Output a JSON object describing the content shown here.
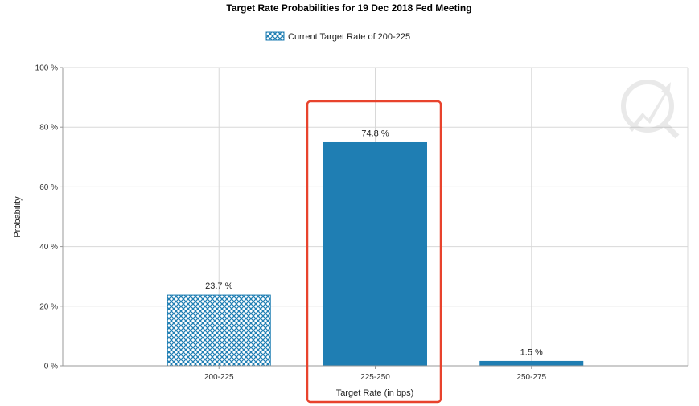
{
  "chart_data": {
    "type": "bar",
    "title": "Target Rate Probabilities for 19 Dec 2018 Fed Meeting",
    "xlabel": "Target Rate (in bps)",
    "ylabel": "Probability",
    "categories": [
      "200-225",
      "225-250",
      "250-275"
    ],
    "values": [
      23.7,
      74.8,
      1.5
    ],
    "value_labels": [
      "23.7 %",
      "74.8 %",
      "1.5 %"
    ],
    "ylim": [
      0,
      100
    ],
    "yticks": [
      0,
      20,
      40,
      60,
      80,
      100
    ],
    "ytick_labels": [
      "0 %",
      "20 %",
      "40 %",
      "60 %",
      "80 %",
      "100 %"
    ],
    "legend": {
      "entries": [
        "Current Target Rate of 200-225"
      ],
      "placement": "top-center"
    },
    "grid": true,
    "highlighted_category": "225-250",
    "current_category": "200-225",
    "colors": {
      "bar": "#1f7eb3",
      "highlight_box": "#e8432d",
      "grid": "#d8d8d8",
      "axis": "#999999"
    }
  }
}
